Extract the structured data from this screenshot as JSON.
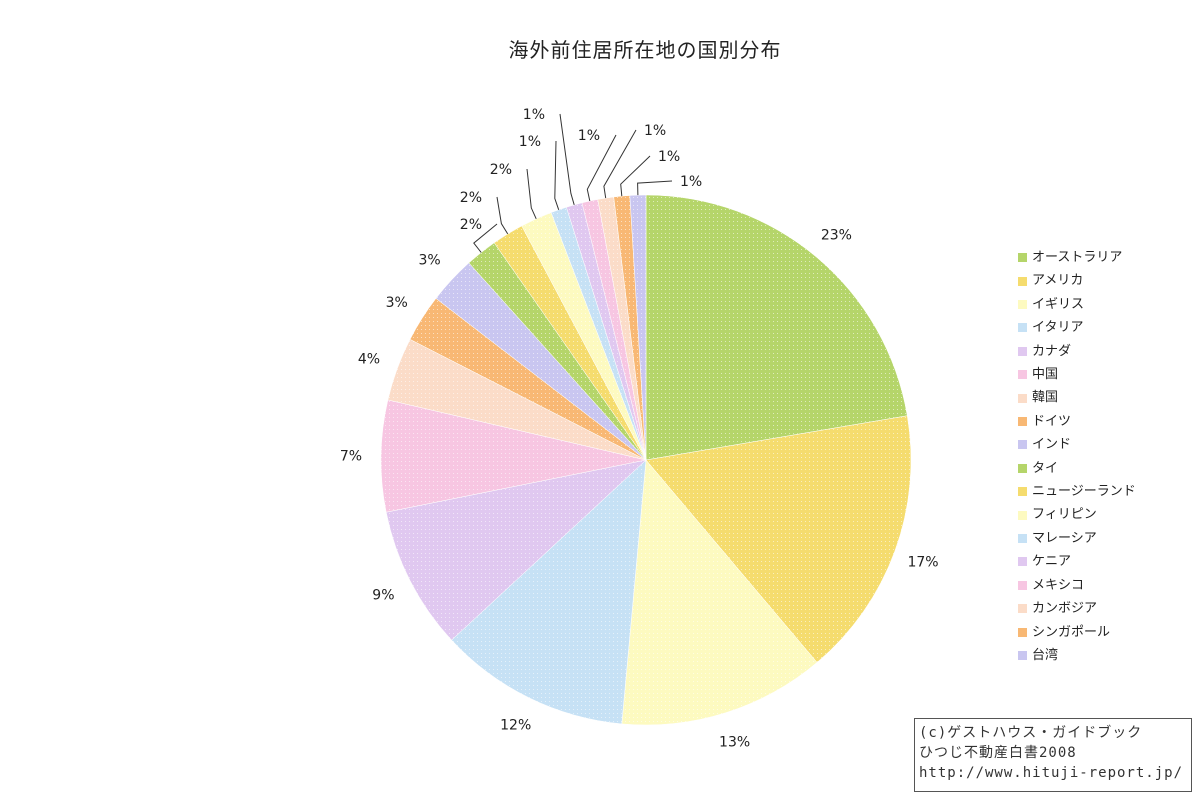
{
  "chart_data": {
    "type": "pie",
    "title": "海外前住居所在地の国別分布",
    "slices": [
      {
        "label": "オーストラリア",
        "value": 23,
        "value_label": "23%",
        "color": "#b5d56a"
      },
      {
        "label": "アメリカ",
        "value": 17,
        "value_label": "17%",
        "color": "#f5dc6e"
      },
      {
        "label": "イギリス",
        "value": 13,
        "value_label": "13%",
        "color": "#fdfac0"
      },
      {
        "label": "イタリア",
        "value": 12,
        "value_label": "12%",
        "color": "#c6e1f5"
      },
      {
        "label": "カナダ",
        "value": 9,
        "value_label": "9%",
        "color": "#e0c8f0"
      },
      {
        "label": "中国",
        "value": 7,
        "value_label": "7%",
        "color": "#f7c6e2"
      },
      {
        "label": "韓国",
        "value": 4,
        "value_label": "4%",
        "color": "#fbdcc8"
      },
      {
        "label": "ドイツ",
        "value": 3,
        "value_label": "3%",
        "color": "#f8b874"
      },
      {
        "label": "インド",
        "value": 3,
        "value_label": "3%",
        "color": "#c9c6f0"
      },
      {
        "label": "タイ",
        "value": 2,
        "value_label": "2%",
        "color": "#b5d56a"
      },
      {
        "label": "ニュージーランド",
        "value": 2,
        "value_label": "2%",
        "color": "#f5dc6e"
      },
      {
        "label": "フィリピン",
        "value": 2,
        "value_label": "2%",
        "color": "#fdfac0"
      },
      {
        "label": "マレーシア",
        "value": 1,
        "value_label": "1%",
        "color": "#c6e1f5"
      },
      {
        "label": "ケニア",
        "value": 1,
        "value_label": "1%",
        "color": "#e0c8f0"
      },
      {
        "label": "メキシコ",
        "value": 1,
        "value_label": "1%",
        "color": "#f7c6e2"
      },
      {
        "label": "カンボジア",
        "value": 1,
        "value_label": "1%",
        "color": "#fbdcc8"
      },
      {
        "label": "シンガポール",
        "value": 1,
        "value_label": "1%",
        "color": "#f8b874"
      },
      {
        "label": "台湾",
        "value": 1,
        "value_label": "1%",
        "color": "#c9c6f0"
      }
    ],
    "legend_position": "right"
  },
  "credit": {
    "line1": "(c)ゲストハウス・ガイドブック",
    "line2": "ひつじ不動産白書2008",
    "line3": "http://www.hituji-report.jp/"
  }
}
